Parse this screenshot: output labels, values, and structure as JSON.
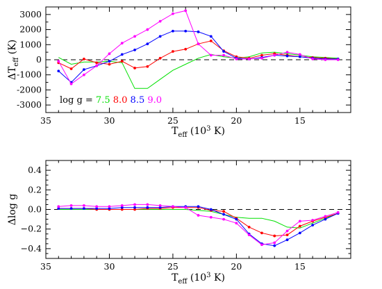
{
  "chart_data": [
    {
      "type": "line",
      "panel": "top",
      "xlabel": {
        "main": "T",
        "sub": "eff",
        "rest": " (10",
        "sup": "3",
        "tail": " K)"
      },
      "ylabel": {
        "prefix": "ΔT",
        "sub": "eff",
        "suffix": "  (K)"
      },
      "xlim": [
        35,
        11
      ],
      "ylim": [
        -3500,
        3500
      ],
      "xticks": [
        35,
        30,
        25,
        20,
        15
      ],
      "yticks": [
        -3000,
        -2000,
        -1000,
        0,
        1000,
        2000,
        3000
      ],
      "zero_line": "dashed",
      "legend": {
        "prefix": "log g = ",
        "placement": "bottom-left",
        "items": [
          {
            "label": "7.5",
            "color": "#00e000"
          },
          {
            "label": "8.0",
            "color": "#ff0000"
          },
          {
            "label": "8.5",
            "color": "#0000ff"
          },
          {
            "label": "9.0",
            "color": "#ff00ff"
          }
        ]
      },
      "series": [
        {
          "name": "7.5",
          "color": "#00e000",
          "markers": false,
          "x": [
            34,
            33,
            32,
            31,
            30,
            29,
            28,
            27,
            26,
            25,
            24,
            23,
            22,
            21,
            20,
            19,
            18,
            17,
            16,
            15,
            14,
            13,
            12
          ],
          "y": [
            150,
            -300,
            -150,
            -150,
            -100,
            -200,
            -1900,
            -1900,
            -1300,
            -700,
            -300,
            100,
            350,
            200,
            100,
            200,
            450,
            500,
            400,
            300,
            200,
            150,
            100
          ]
        },
        {
          "name": "8.0",
          "color": "#ff0000",
          "markers": true,
          "x": [
            34,
            33,
            32,
            31,
            30,
            29,
            28,
            27,
            26,
            25,
            24,
            23,
            22,
            21,
            20,
            19,
            18,
            17,
            16,
            15,
            14,
            13,
            12
          ],
          "y": [
            -200,
            -600,
            50,
            -200,
            -300,
            -100,
            -550,
            -450,
            100,
            550,
            700,
            1050,
            1250,
            600,
            200,
            100,
            300,
            400,
            300,
            200,
            150,
            100,
            50
          ]
        },
        {
          "name": "8.5",
          "color": "#0000ff",
          "markers": true,
          "x": [
            34,
            33,
            32,
            31,
            30,
            29,
            28,
            27,
            26,
            25,
            24,
            23,
            22,
            21,
            20,
            19,
            18,
            17,
            16,
            15,
            14,
            13,
            12
          ],
          "y": [
            -750,
            -1500,
            -650,
            -400,
            -100,
            350,
            650,
            1050,
            1550,
            1900,
            1900,
            1850,
            1550,
            550,
            100,
            50,
            150,
            300,
            250,
            200,
            100,
            50,
            50
          ]
        },
        {
          "name": "9.0",
          "color": "#ff00ff",
          "markers": true,
          "x": [
            34,
            33,
            32,
            31,
            30,
            29,
            28,
            27,
            26,
            25,
            24,
            23,
            22,
            21,
            20,
            19,
            18,
            17,
            16,
            15,
            14,
            13,
            12
          ],
          "y": [
            -100,
            -1600,
            -1000,
            -400,
            400,
            1100,
            1550,
            2000,
            2550,
            3050,
            3250,
            1050,
            300,
            300,
            50,
            50,
            100,
            300,
            500,
            350,
            50,
            0,
            0
          ]
        }
      ]
    },
    {
      "type": "line",
      "panel": "bottom",
      "xlabel": {
        "main": "T",
        "sub": "eff",
        "rest": " (10",
        "sup": "3",
        "tail": " K)"
      },
      "ylabel": {
        "prefix": "Δlog  g",
        "sub": "",
        "suffix": ""
      },
      "xlim": [
        35,
        11
      ],
      "ylim": [
        -0.5,
        0.5
      ],
      "xticks": [
        35,
        30,
        25,
        20,
        15
      ],
      "yticks": [
        -0.4,
        -0.2,
        0.0,
        0.2,
        0.4
      ],
      "ytick_labels": [
        "−0.4",
        "−0.2",
        "0.0",
        "0.2",
        "0.4"
      ],
      "zero_line": "dashed",
      "series": [
        {
          "name": "7.5",
          "color": "#00e000",
          "markers": false,
          "x": [
            34,
            33,
            32,
            31,
            30,
            29,
            28,
            27,
            26,
            25,
            24,
            23,
            22,
            21,
            20,
            19,
            18,
            17,
            16,
            15,
            14,
            13,
            12
          ],
          "y": [
            0.0,
            0.0,
            0.0,
            0.0,
            0.0,
            0.0,
            0.0,
            0.0,
            0.0,
            0.0,
            0.0,
            -0.01,
            -0.02,
            -0.05,
            -0.08,
            -0.09,
            -0.09,
            -0.12,
            -0.18,
            -0.19,
            -0.14,
            -0.09,
            -0.04
          ]
        },
        {
          "name": "8.0",
          "color": "#ff0000",
          "markers": true,
          "x": [
            34,
            33,
            32,
            31,
            30,
            29,
            28,
            27,
            26,
            25,
            24,
            23,
            22,
            21,
            20,
            19,
            18,
            17,
            16,
            15,
            14,
            13,
            12
          ],
          "y": [
            0.01,
            0.01,
            0.01,
            0.0,
            0.0,
            0.0,
            0.0,
            0.01,
            0.01,
            0.02,
            0.02,
            0.02,
            -0.01,
            -0.02,
            -0.09,
            -0.18,
            -0.24,
            -0.27,
            -0.26,
            -0.17,
            -0.12,
            -0.08,
            -0.04
          ]
        },
        {
          "name": "8.5",
          "color": "#0000ff",
          "markers": true,
          "x": [
            34,
            33,
            32,
            31,
            30,
            29,
            28,
            27,
            26,
            25,
            24,
            23,
            22,
            21,
            20,
            19,
            18,
            17,
            16,
            15,
            14,
            13,
            12
          ],
          "y": [
            0.01,
            0.01,
            0.01,
            0.01,
            0.01,
            0.02,
            0.02,
            0.02,
            0.02,
            0.03,
            0.03,
            0.03,
            0.0,
            -0.05,
            -0.1,
            -0.25,
            -0.35,
            -0.37,
            -0.31,
            -0.24,
            -0.16,
            -0.1,
            -0.04
          ]
        },
        {
          "name": "9.0",
          "color": "#ff00ff",
          "markers": true,
          "x": [
            34,
            33,
            32,
            31,
            30,
            29,
            28,
            27,
            26,
            25,
            24,
            23,
            22,
            21,
            20,
            19,
            18,
            17,
            16,
            15,
            14,
            13,
            12
          ],
          "y": [
            0.03,
            0.04,
            0.04,
            0.03,
            0.03,
            0.04,
            0.05,
            0.05,
            0.04,
            0.03,
            0.02,
            -0.06,
            -0.08,
            -0.1,
            -0.14,
            -0.26,
            -0.36,
            -0.34,
            -0.22,
            -0.12,
            -0.11,
            -0.07,
            -0.03
          ]
        }
      ]
    }
  ]
}
